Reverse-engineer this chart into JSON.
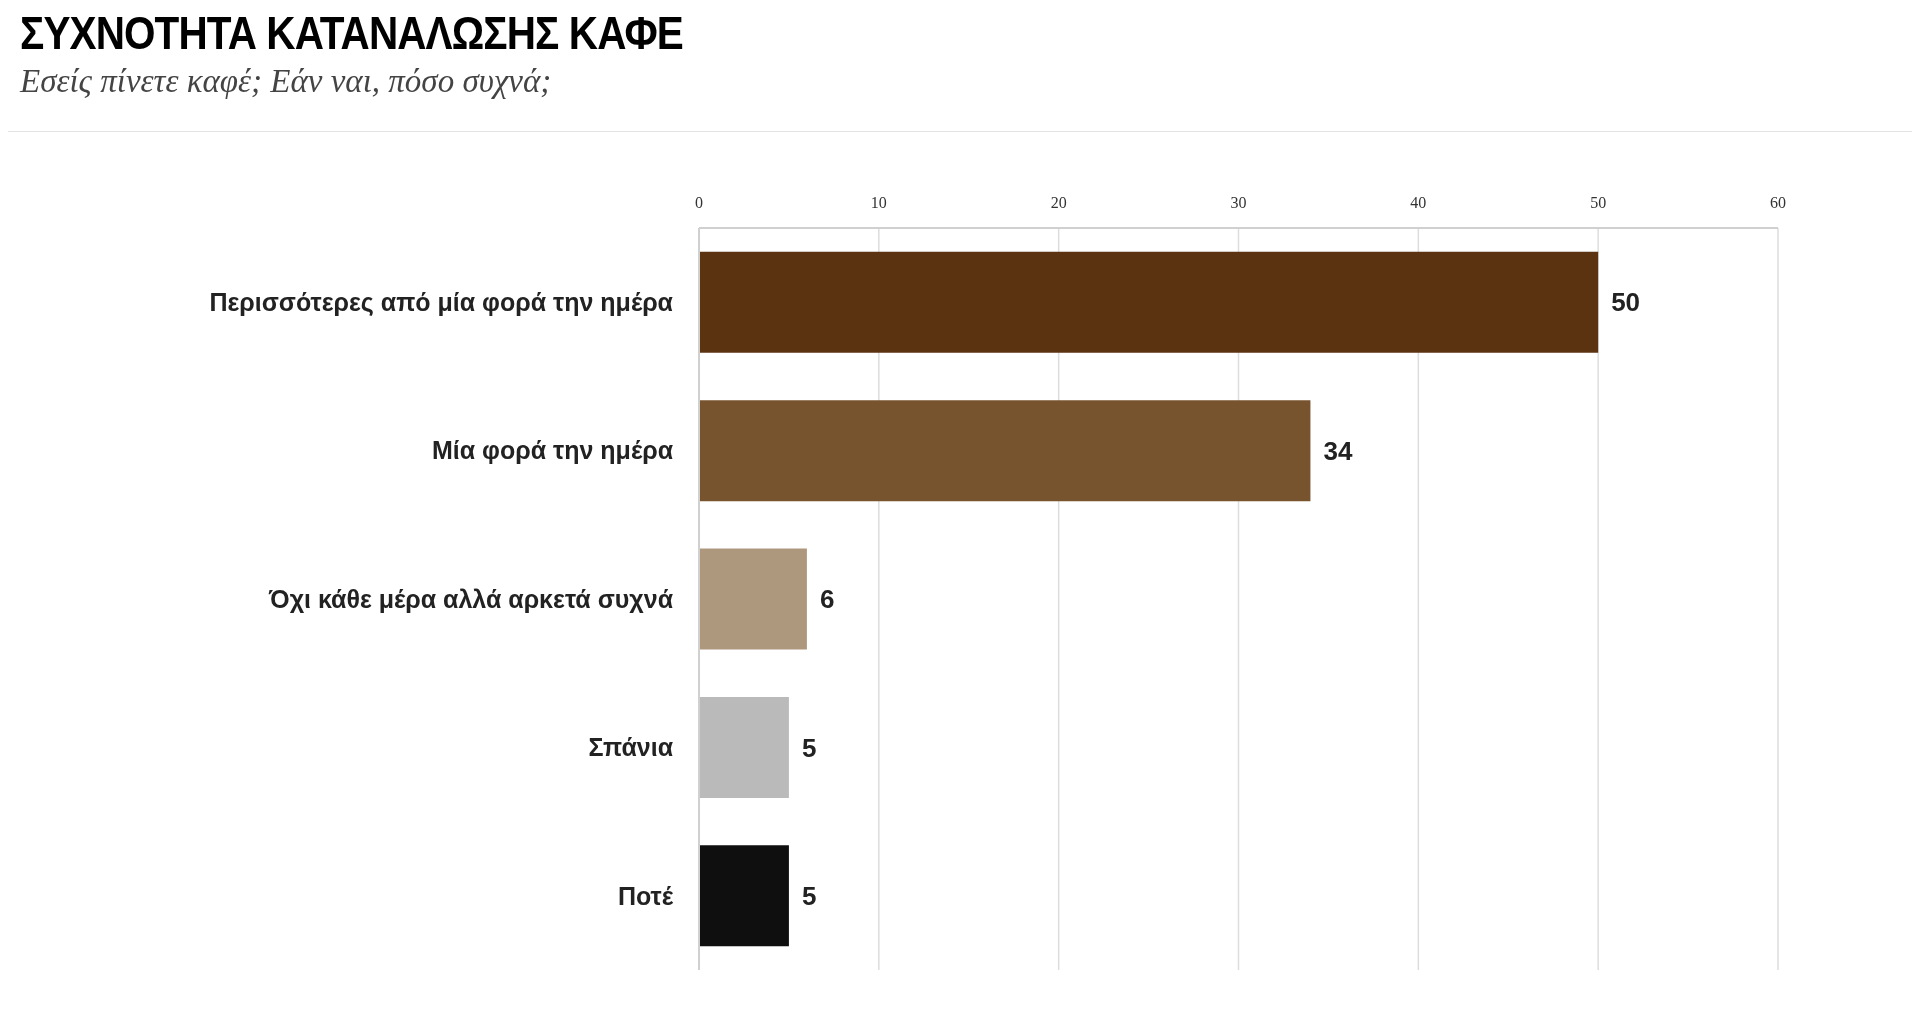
{
  "chart_data": {
    "type": "bar",
    "orientation": "horizontal",
    "title": "ΣΥΧΝΟΤΗΤΑ ΚΑΤΑΝΑΛΩΣΗΣ ΚΑΦΕ",
    "subtitle": "Εσείς πίνετε καφέ; Εάν ναι, πόσο συχνά;",
    "categories": [
      "Περισσότερες από μία φορά την ημέρα",
      "Μία φορά την ημέρα",
      "Όχι κάθε μέρα αλλά αρκετά συχνά",
      "Σπάνια",
      "Ποτέ"
    ],
    "values": [
      50,
      34,
      6,
      5,
      5
    ],
    "colors": [
      "#5c3310",
      "#77532e",
      "#ad977d",
      "#bababa",
      "#0f0f0f"
    ],
    "xlim": [
      0,
      60
    ],
    "xticks": [
      0,
      10,
      20,
      30,
      40,
      50,
      60
    ],
    "grid": "x",
    "data_labels": true
  }
}
